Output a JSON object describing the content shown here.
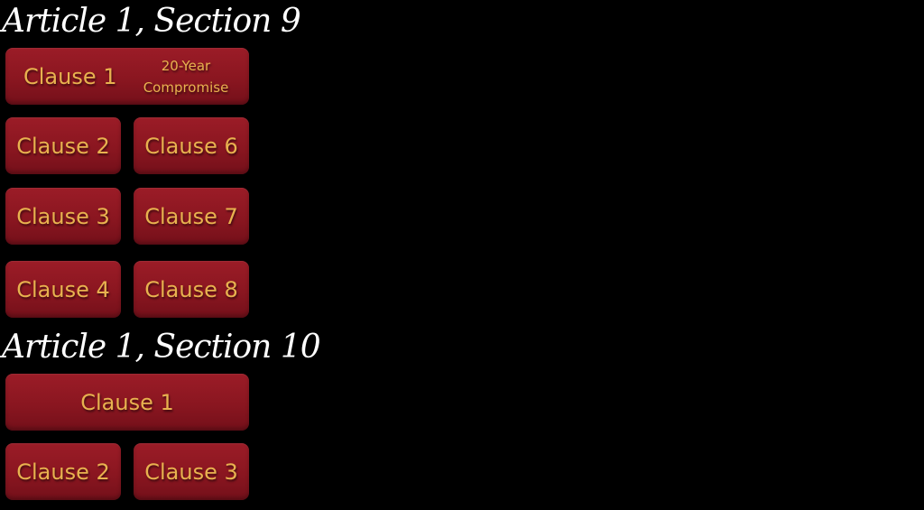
{
  "sections": [
    {
      "title": "Article 1, Section 9",
      "clauses": [
        {
          "label": "Clause 1",
          "note_line1": "20-Year",
          "note_line2": "Compromise"
        },
        {
          "label": "Clause 2"
        },
        {
          "label": "Clause 6"
        },
        {
          "label": "Clause 3"
        },
        {
          "label": "Clause 7"
        },
        {
          "label": "Clause 4"
        },
        {
          "label": "Clause 8"
        }
      ]
    },
    {
      "title": "Article 1, Section 10",
      "clauses": [
        {
          "label": "Clause 1"
        },
        {
          "label": "Clause 2"
        },
        {
          "label": "Clause 3"
        }
      ]
    }
  ],
  "colors": {
    "background": "#000000",
    "button": "#8a1620",
    "button_text": "#e8b24f",
    "title_text": "#ffffff"
  }
}
